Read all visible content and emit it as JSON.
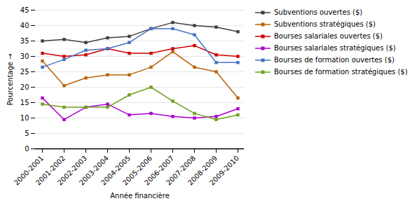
{
  "chart_data": {
    "type": "line",
    "xlabel": "Année financière",
    "ylabel": "Pourcentage",
    "categories": [
      "2000-2001",
      "2001-2002",
      "2002-2003",
      "2003-2004",
      "2004-2005",
      "2005-2006",
      "2006-2007",
      "2007-2008",
      "2008-2009",
      "2009-2010"
    ],
    "series": [
      {
        "name": "Subventions ouvertes ($)",
        "color": "#404040",
        "marker": "square",
        "line_style": "solid",
        "values": [
          35,
          35.5,
          34.5,
          36,
          36.5,
          39,
          41,
          40,
          39.5,
          38
        ]
      },
      {
        "name": "Subventions stratégiques ($)",
        "color": "#B8620A",
        "marker": "square",
        "line_style": "solid",
        "values": [
          28.5,
          20.5,
          23,
          24,
          24,
          26.5,
          31.5,
          26.5,
          25,
          16.5
        ]
      },
      {
        "name": "Bourses salariales ouvertes ($)",
        "color": "#CC0000",
        "marker": "square",
        "line_style": "solid",
        "values": [
          31,
          30,
          30.5,
          32.5,
          31,
          31,
          32.5,
          33.5,
          30.5,
          30
        ]
      },
      {
        "name": "Bourses salariales stratégiques ($)",
        "color": "#AA00CC",
        "marker": "square",
        "line_style": "solid",
        "values": [
          16.5,
          9.5,
          13.5,
          14.5,
          11,
          11.5,
          10.5,
          10,
          10.5,
          13
        ]
      },
      {
        "name": "Bourses de formation ouvertes ($)",
        "color": "#4472C4",
        "marker": "square",
        "line_style": "solid",
        "values": [
          26.5,
          29,
          32,
          32.5,
          34.5,
          39,
          39,
          37,
          28,
          28
        ]
      },
      {
        "name": "Bourses de formation stratégiques ($)",
        "color": "#70A020",
        "marker": "square",
        "line_style": "solid",
        "values": [
          14.5,
          13.5,
          13.5,
          13.5,
          17.5,
          20,
          15.5,
          11.5,
          9.5,
          11
        ]
      }
    ],
    "ylim": [
      0,
      45
    ],
    "yticks": [
      0,
      5,
      10,
      15,
      20,
      25,
      30,
      35,
      40,
      45
    ],
    "grid": true,
    "legend": "right"
  }
}
